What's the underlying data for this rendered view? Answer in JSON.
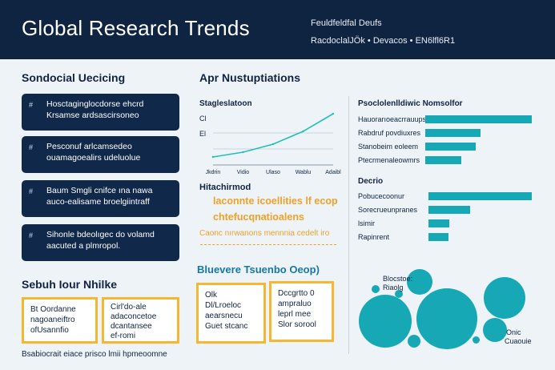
{
  "header": {
    "title": "Global Research Trends",
    "subtitle_top": "Feuldfeldfal Deufs",
    "subtitle_bottom": "RacdoclalJÖk  •  Devacos  •  EN6lfl6R1"
  },
  "left": {
    "section_title": "Sondocial Uecicing",
    "cards": [
      {
        "marker": "#",
        "line1": "Hosctaginglocdorse ehcrd",
        "line2": "Krsamse ardsascirsoneo"
      },
      {
        "marker": "#",
        "line1": "Pesconuf arlcamsedeo",
        "line2": "ouamagoealirs udeluolue"
      },
      {
        "marker": "#",
        "line1": "Baum Smgli cnifce ına nawa",
        "line2": "auco-ealisame broelgiintraff"
      },
      {
        "marker": "#",
        "line1": "Sihonle bdeolıgec do volamd",
        "line2": "aacuted a plmropol."
      }
    ],
    "bottom_title": "Sebuh Iour Nhilke",
    "boxes": [
      {
        "lines": [
          "Bt Oordanne",
          "nagoaneiftro",
          "ofUsannfio"
        ]
      },
      {
        "lines": [
          "Cirl'do-ale",
          "adaconcetoe",
          "dcantansee",
          "ef-romi"
        ]
      }
    ],
    "footnote": "Bsabiocrait eiace prisco lmii hpmeoomne"
  },
  "middle": {
    "section_title": "Apr Nustuptiations",
    "chart_labels": {
      "legend": "Stagleslatoon",
      "y_ticks": [
        "Cl",
        "El"
      ],
      "x_ticks": [
        "Jkdrin",
        "Vidio",
        "Ulaso",
        "Wablu",
        "Adaibl"
      ]
    },
    "chart_data": {
      "type": "line",
      "x": [
        "Jkdrin",
        "Vidio",
        "Ulaso",
        "Wablu",
        "Adaibl"
      ],
      "series": [
        {
          "name": "Stagleslatoon",
          "values": [
            10,
            16,
            26,
            42,
            64
          ]
        }
      ],
      "ylim": [
        0,
        80
      ],
      "grid": true
    },
    "insight_title": "Hitachirmod",
    "insight_lines": [
      "laconnte icoellities lf ecop",
      "chtefucqnatioalens"
    ],
    "insight_small": "Caonc nırwanons mennnia  cedelt iro",
    "bubble_title": "Bluevere Tsuenbo Oeop)",
    "boxes": [
      {
        "lines": [
          "Olk",
          "Dl/Lroeloc",
          "aearsnecu",
          "Guet stcanc"
        ]
      },
      {
        "lines": [
          "Dccgrtto 0",
          "ampraluo",
          "leprl mee",
          "Slor sorool"
        ]
      }
    ]
  },
  "right": {
    "bars_title": "Psoclolenlldiwic Nomsolfor",
    "bars_group1": [
      {
        "label": "Hauorarıoeacrrauups",
        "value": 100
      },
      {
        "label": "Rabdruf povdiuxres",
        "value": 52
      },
      {
        "label": "Stanobeim eoleem",
        "value": 47
      },
      {
        "label": "Ptecrmenaleowmrs",
        "value": 34
      }
    ],
    "group2_title": "Decrio",
    "bars_group2": [
      {
        "label": "Pobucecoonur",
        "value": 100
      },
      {
        "label": "Sorecrueunpranes",
        "value": 40
      },
      {
        "label": "lsimir",
        "value": 20
      },
      {
        "label": "Rapinrent",
        "value": 19
      }
    ],
    "bubbles": [
      {
        "label": "Blocstoe:",
        "label2": "Riaolg"
      },
      {
        "label": "Onic",
        "label2": "Cuaouie"
      }
    ]
  },
  "colors": {
    "navy": "#0f2440",
    "teal": "#16a9b5",
    "accent_yellow": "#f5b731",
    "accent_orange": "#f0a126",
    "line": "#22c0b4"
  }
}
